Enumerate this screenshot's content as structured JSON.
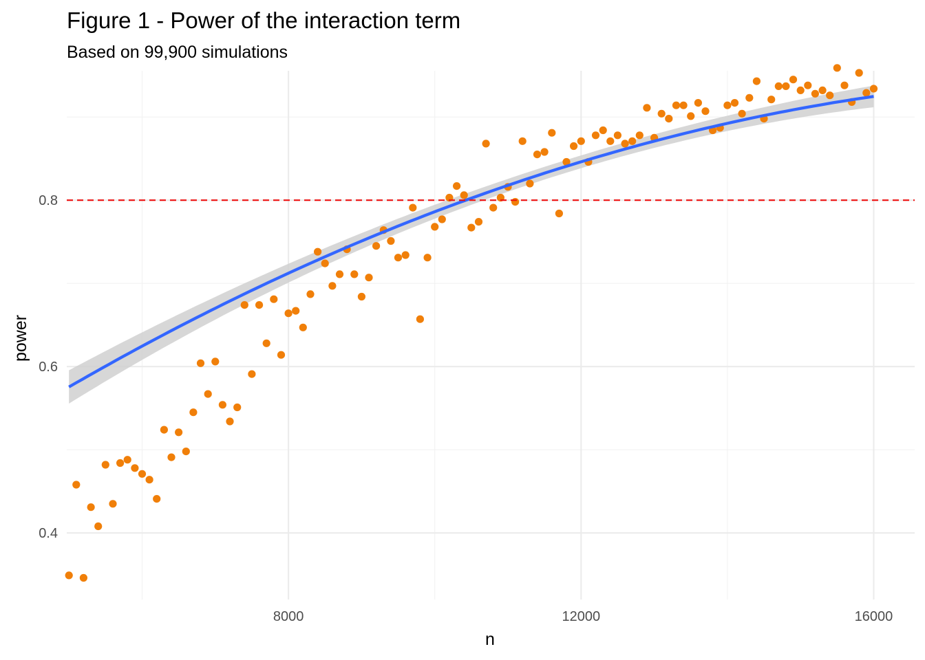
{
  "chart_data": {
    "type": "scatter",
    "title": "Figure 1 - Power of the interaction term",
    "subtitle": "Based on 99,900 simulations",
    "xlabel": "n",
    "ylabel": "power",
    "xlim": [
      4970,
      16560
    ],
    "ylim": [
      0.32,
      0.9555
    ],
    "x_ticks": [
      8000,
      12000,
      16000
    ],
    "x_tick_labels": [
      "8000",
      "12000",
      "16000"
    ],
    "x_minor_ticks": [
      6000,
      10000,
      14000
    ],
    "y_ticks": [
      0.4,
      0.6,
      0.8
    ],
    "y_tick_labels": [
      "0.4",
      "0.6",
      "0.8"
    ],
    "y_minor_ticks": [
      0.5,
      0.7,
      0.9
    ],
    "grid": true,
    "reference_line": {
      "y": 0.8,
      "color": "#ee1111",
      "style": "dashed"
    },
    "points_color": "#f07f09",
    "smooth_color": "#3366ff",
    "band_color": "#d0d0d0",
    "x": [
      5000,
      5100,
      5200,
      5300,
      5400,
      5500,
      5600,
      5700,
      5800,
      5900,
      6000,
      6100,
      6200,
      6300,
      6400,
      6500,
      6600,
      6700,
      6800,
      6900,
      7000,
      7100,
      7200,
      7300,
      7400,
      7500,
      7600,
      7700,
      7800,
      7900,
      8000,
      8100,
      8200,
      8300,
      8400,
      8500,
      8600,
      8700,
      8800,
      8900,
      9000,
      9100,
      9200,
      9300,
      9400,
      9500,
      9600,
      9700,
      9800,
      9900,
      10000,
      10100,
      10200,
      10300,
      10400,
      10500,
      10600,
      10700,
      10800,
      10900,
      11000,
      11100,
      11200,
      11300,
      11400,
      11500,
      11600,
      11700,
      11800,
      11900,
      12000,
      12100,
      12200,
      12300,
      12400,
      12500,
      12600,
      12700,
      12800,
      12900,
      13000,
      13100,
      13200,
      13300,
      13400,
      13500,
      13600,
      13700,
      13800,
      13900,
      14000,
      14100,
      14200,
      14300,
      14400,
      14500,
      14600,
      14700,
      14800,
      14900,
      15000,
      15100,
      15200,
      15300,
      15400,
      15500,
      15600,
      15700,
      15800,
      15900,
      16000
    ],
    "y": [
      0.349,
      0.458,
      0.346,
      0.431,
      0.408,
      0.482,
      0.435,
      0.484,
      0.488,
      0.478,
      0.471,
      0.464,
      0.441,
      0.524,
      0.491,
      0.521,
      0.498,
      0.545,
      0.604,
      0.567,
      0.606,
      0.554,
      0.534,
      0.551,
      0.674,
      0.591,
      0.674,
      0.628,
      0.681,
      0.614,
      0.664,
      0.667,
      0.647,
      0.687,
      0.738,
      0.724,
      0.697,
      0.711,
      0.741,
      0.711,
      0.684,
      0.707,
      0.745,
      0.764,
      0.751,
      0.731,
      0.734,
      0.791,
      0.657,
      0.731,
      0.768,
      0.777,
      0.803,
      0.817,
      0.806,
      0.767,
      0.774,
      0.868,
      0.791,
      0.803,
      0.816,
      0.798,
      0.871,
      0.82,
      0.855,
      0.858,
      0.881,
      0.784,
      0.846,
      0.865,
      0.871,
      0.846,
      0.878,
      0.884,
      0.871,
      0.878,
      0.868,
      0.871,
      0.878,
      0.911,
      0.875,
      0.904,
      0.898,
      0.914,
      0.914,
      0.901,
      0.917,
      0.907,
      0.884,
      0.887,
      0.914,
      0.917,
      0.904,
      0.923,
      0.943,
      0.898,
      0.921,
      0.937,
      0.937,
      0.945,
      0.932,
      0.938,
      0.928,
      0.932,
      0.926,
      0.959,
      0.938,
      0.918,
      0.953,
      0.929,
      0.934
    ],
    "smooth_fit": {
      "method": "quadratic",
      "x0": 10500,
      "a": 0.8024,
      "b": 3.175e-05,
      "c": -1.7285e-09,
      "se": [
        0.02,
        0.008,
        0.013
      ]
    }
  }
}
